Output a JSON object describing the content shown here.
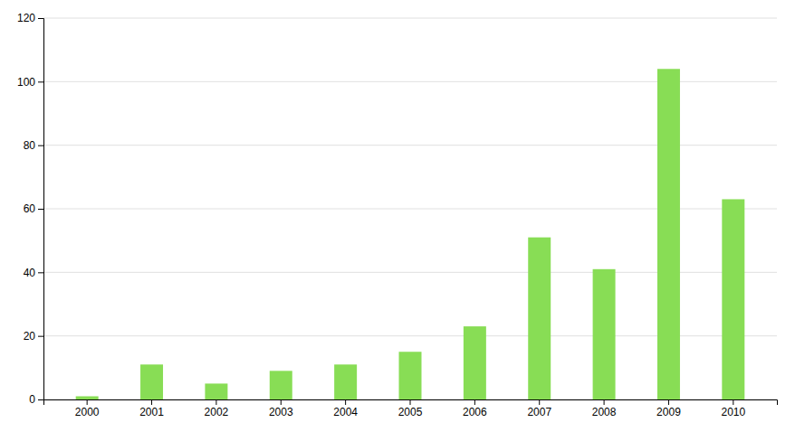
{
  "chart_data": {
    "type": "bar",
    "categories": [
      "2000",
      "2001",
      "2002",
      "2003",
      "2004",
      "2005",
      "2006",
      "2007",
      "2008",
      "2009",
      "2010"
    ],
    "values": [
      1,
      11,
      5,
      9,
      11,
      15,
      23,
      51,
      41,
      104,
      63
    ],
    "color": "#88DD55",
    "ylim": [
      0,
      120
    ],
    "yticks": [
      0,
      20,
      40,
      60,
      80,
      100,
      120
    ],
    "grid": true
  }
}
